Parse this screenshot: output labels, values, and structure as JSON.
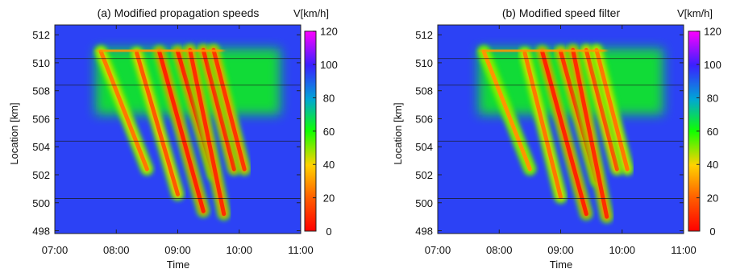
{
  "chart_data": [
    {
      "type": "heatmap",
      "title": "(a) Modified propagation speeds",
      "xlabel": "Time",
      "ylabel": "Location [km]",
      "x_ticks": [
        "07:00",
        "08:00",
        "09:00",
        "10:00",
        "11:00"
      ],
      "y_ticks": [
        "498",
        "500",
        "502",
        "504",
        "506",
        "508",
        "510",
        "512"
      ],
      "xlim": [
        "07:00",
        "11:00"
      ],
      "ylim": [
        497.8,
        512.7
      ],
      "colorbar": {
        "title": "V[km/h]",
        "ticks": [
          "0",
          "20",
          "40",
          "60",
          "80",
          "100",
          "120"
        ],
        "range": [
          0,
          120
        ]
      },
      "reference_lines_km": [
        500.3,
        504.4,
        508.4,
        510.3
      ],
      "background_speed": 95,
      "congested_region": {
        "x_range": [
          "07:40",
          "10:40"
        ],
        "y_range": [
          506.3,
          511.0
        ],
        "speed": 62
      },
      "jams": [
        {
          "start_time": "07:45",
          "end_time": "08:30",
          "top_km": 510.8,
          "tail_km": 502.4,
          "speed": 25
        },
        {
          "start_time": "08:20",
          "end_time": "09:00",
          "top_km": 510.7,
          "tail_km": 500.6,
          "speed": 20
        },
        {
          "start_time": "08:42",
          "end_time": "09:25",
          "top_km": 510.8,
          "tail_km": 499.4,
          "speed": 8
        },
        {
          "start_time": "09:00",
          "end_time": "09:35",
          "top_km": 510.8,
          "tail_km": 502.0,
          "speed": 8
        },
        {
          "start_time": "09:12",
          "end_time": "09:45",
          "top_km": 510.9,
          "tail_km": 499.2,
          "speed": 10
        },
        {
          "start_time": "09:25",
          "end_time": "09:55",
          "top_km": 510.9,
          "tail_km": 502.4,
          "speed": 10
        },
        {
          "start_time": "09:35",
          "end_time": "10:05",
          "top_km": 510.9,
          "tail_km": 502.4,
          "speed": 12
        }
      ]
    },
    {
      "type": "heatmap",
      "title": "(b) Modified speed filter",
      "xlabel": "Time",
      "ylabel": "Location [km]",
      "x_ticks": [
        "07:00",
        "08:00",
        "09:00",
        "10:00",
        "11:00"
      ],
      "y_ticks": [
        "498",
        "500",
        "502",
        "504",
        "506",
        "508",
        "510",
        "512"
      ],
      "xlim": [
        "07:00",
        "11:00"
      ],
      "ylim": [
        497.8,
        512.7
      ],
      "colorbar": {
        "title": "V[km/h]",
        "ticks": [
          "0",
          "20",
          "40",
          "60",
          "80",
          "100",
          "120"
        ],
        "range": [
          0,
          120
        ]
      },
      "reference_lines_km": [
        500.3,
        504.4,
        508.4,
        510.3
      ],
      "background_speed": 95,
      "congested_region": {
        "x_range": [
          "07:40",
          "10:40"
        ],
        "y_range": [
          506.3,
          511.0
        ],
        "speed": 62
      },
      "jams": [
        {
          "start_time": "07:45",
          "end_time": "08:30",
          "top_km": 510.8,
          "tail_km": 502.4,
          "speed": 30
        },
        {
          "start_time": "08:25",
          "end_time": "09:00",
          "top_km": 510.7,
          "tail_km": 500.4,
          "speed": 25
        },
        {
          "start_time": "08:42",
          "end_time": "09:25",
          "top_km": 510.8,
          "tail_km": 499.2,
          "speed": 8
        },
        {
          "start_time": "09:00",
          "end_time": "09:35",
          "top_km": 510.8,
          "tail_km": 501.6,
          "speed": 12
        },
        {
          "start_time": "09:12",
          "end_time": "09:45",
          "top_km": 510.9,
          "tail_km": 499.0,
          "speed": 10
        },
        {
          "start_time": "09:25",
          "end_time": "09:55",
          "top_km": 510.9,
          "tail_km": 502.4,
          "speed": 18
        },
        {
          "start_time": "09:35",
          "end_time": "10:05",
          "top_km": 510.9,
          "tail_km": 502.4,
          "speed": 25
        }
      ]
    }
  ]
}
